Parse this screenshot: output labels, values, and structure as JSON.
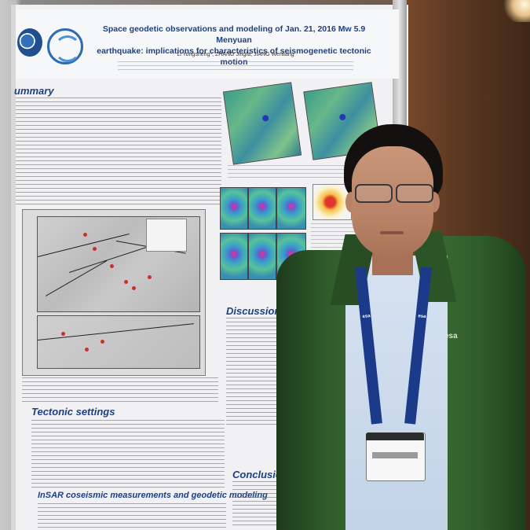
{
  "poster": {
    "title_line1": "Space geodetic observations and modeling of Jan. 21, 2016 Mw 5.9 Menyuan",
    "title_line2": "earthquake: implications for characteristics of seismogenetic tectonic motion",
    "authors": "Li Yongsheng*, ZHANG Jingfa, JIANG Wenliang",
    "sections": {
      "summary": "ummary",
      "tectonic": "Tectonic settings",
      "insar": "InSAR coseismic measurements and geodetic modeling",
      "discussion": "Discussion",
      "conclusions": "Conclusions"
    }
  },
  "lanyard_text": "esa",
  "jacket_logo": "esa",
  "colors": {
    "poster_title": "#1d3f86",
    "jacket": "#2f5c2a",
    "lanyard": "#1b3a8a"
  }
}
